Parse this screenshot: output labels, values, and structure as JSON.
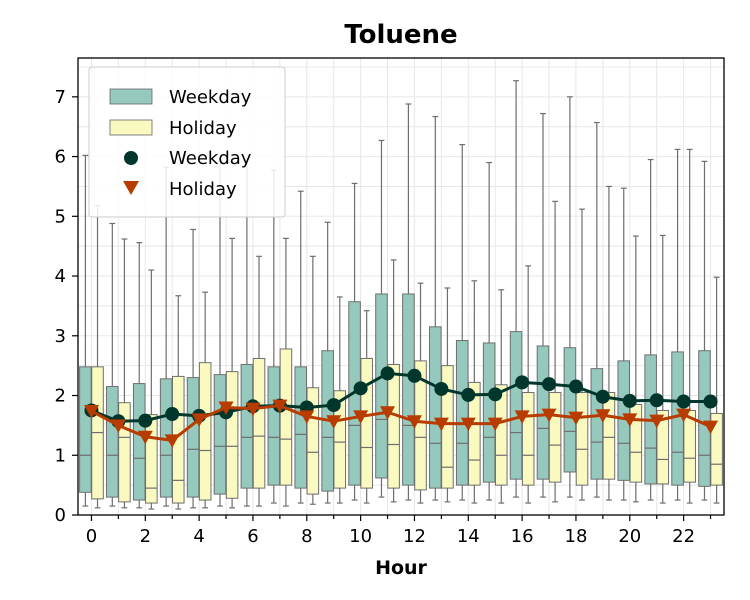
{
  "chart_data": {
    "type": "box",
    "title": "Toluene",
    "xlabel": "Hour",
    "ylabel": "",
    "xlim": [
      -0.5,
      23.5
    ],
    "ylim": [
      0,
      7.65
    ],
    "x_ticks": [
      0,
      2,
      4,
      6,
      8,
      10,
      12,
      14,
      16,
      18,
      20,
      22
    ],
    "y_ticks": [
      0,
      1,
      2,
      3,
      4,
      5,
      6,
      7
    ],
    "grid": true,
    "legend_position": "top-left",
    "hours": [
      0,
      1,
      2,
      3,
      4,
      5,
      6,
      7,
      8,
      9,
      10,
      11,
      12,
      13,
      14,
      15,
      16,
      17,
      18,
      19,
      20,
      21,
      22,
      23
    ],
    "box_series": [
      {
        "name": "Weekday",
        "color": "#96c9bd",
        "q1": [
          0.38,
          0.3,
          0.25,
          0.3,
          0.3,
          0.35,
          0.45,
          0.5,
          0.45,
          0.4,
          0.5,
          0.62,
          0.5,
          0.45,
          0.5,
          0.55,
          0.6,
          0.6,
          0.72,
          0.6,
          0.58,
          0.52,
          0.5,
          0.48
        ],
        "median": [
          1.0,
          1.0,
          0.95,
          1.0,
          1.1,
          1.15,
          1.3,
          1.3,
          1.35,
          1.3,
          1.5,
          1.6,
          1.5,
          1.2,
          1.2,
          1.3,
          1.38,
          1.45,
          1.4,
          1.22,
          1.2,
          1.12,
          1.05,
          1.0
        ],
        "q3": [
          2.48,
          2.15,
          2.2,
          2.28,
          2.3,
          2.35,
          2.52,
          2.48,
          2.48,
          2.75,
          3.57,
          3.7,
          3.7,
          3.15,
          2.92,
          2.88,
          3.07,
          2.83,
          2.8,
          2.45,
          2.58,
          2.68,
          2.73,
          2.75
        ],
        "whisker_low": [
          0.15,
          0.15,
          0.12,
          0.15,
          0.12,
          0.15,
          0.15,
          0.2,
          0.2,
          0.2,
          0.25,
          0.3,
          0.25,
          0.25,
          0.25,
          0.25,
          0.3,
          0.3,
          0.3,
          0.3,
          0.25,
          0.25,
          0.25,
          0.25
        ],
        "whisker_high": [
          6.02,
          4.88,
          4.56,
          5.82,
          4.78,
          5.92,
          5.95,
          5.77,
          5.42,
          4.9,
          5.55,
          6.27,
          6.88,
          6.67,
          6.2,
          5.9,
          7.27,
          6.72,
          7.0,
          6.57,
          5.47,
          5.95,
          6.12,
          5.92
        ]
      },
      {
        "name": "Holiday",
        "color": "#fafac0",
        "q1": [
          0.27,
          0.22,
          0.2,
          0.2,
          0.25,
          0.28,
          0.45,
          0.5,
          0.35,
          0.45,
          0.45,
          0.45,
          0.42,
          0.45,
          0.5,
          0.5,
          0.5,
          0.55,
          0.5,
          0.6,
          0.55,
          0.52,
          0.55,
          0.5
        ],
        "median": [
          1.38,
          1.3,
          0.45,
          0.58,
          1.08,
          1.15,
          1.32,
          1.27,
          1.05,
          1.22,
          1.13,
          1.18,
          1.3,
          0.8,
          0.92,
          1.0,
          1.0,
          1.17,
          1.1,
          1.3,
          1.05,
          0.93,
          0.95,
          0.85
        ],
        "q3": [
          2.48,
          1.88,
          1.68,
          2.32,
          2.55,
          2.4,
          2.62,
          2.78,
          2.13,
          2.08,
          2.62,
          2.52,
          2.58,
          2.5,
          2.22,
          2.18,
          2.05,
          2.05,
          2.05,
          2.05,
          1.85,
          1.75,
          1.75,
          1.7
        ],
        "whisker_low": [
          0.12,
          0.12,
          0.1,
          0.1,
          0.12,
          0.12,
          0.15,
          0.15,
          0.18,
          0.2,
          0.2,
          0.22,
          0.2,
          0.22,
          0.2,
          0.2,
          0.2,
          0.22,
          0.25,
          0.25,
          0.22,
          0.2,
          0.2,
          0.2
        ],
        "whisker_high": [
          5.18,
          4.62,
          4.1,
          3.67,
          3.73,
          4.63,
          4.33,
          4.63,
          4.33,
          3.65,
          3.42,
          4.27,
          3.88,
          3.8,
          3.92,
          3.77,
          4.17,
          5.25,
          5.12,
          5.5,
          4.67,
          4.68,
          6.12,
          3.98
        ]
      }
    ],
    "line_series": [
      {
        "name": "Weekday",
        "color": "#00362b",
        "marker": "circle",
        "values": [
          1.75,
          1.57,
          1.58,
          1.69,
          1.66,
          1.72,
          1.82,
          1.83,
          1.8,
          1.84,
          2.12,
          2.37,
          2.33,
          2.11,
          2.01,
          2.02,
          2.22,
          2.19,
          2.15,
          1.98,
          1.91,
          1.92,
          1.9,
          1.9
        ]
      },
      {
        "name": "Holiday",
        "color": "#b83b00",
        "marker": "triangle-down",
        "values": [
          1.74,
          1.5,
          1.31,
          1.25,
          1.6,
          1.8,
          1.78,
          1.83,
          1.65,
          1.57,
          1.65,
          1.72,
          1.57,
          1.53,
          1.53,
          1.53,
          1.65,
          1.68,
          1.63,
          1.67,
          1.6,
          1.58,
          1.68,
          1.48
        ]
      }
    ],
    "legend": [
      "Weekday",
      "Holiday",
      "Weekday",
      "Holiday"
    ]
  }
}
